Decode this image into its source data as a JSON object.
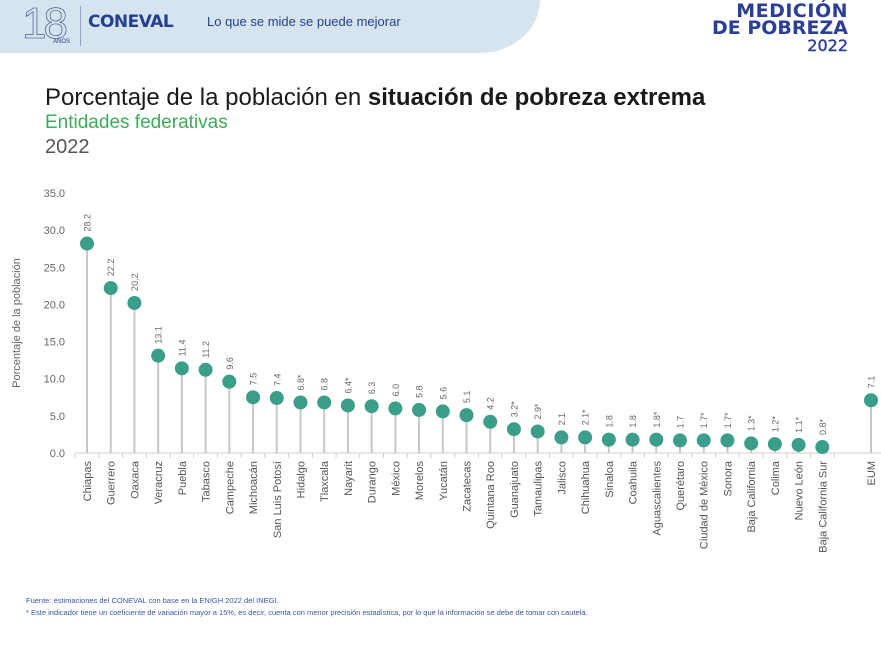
{
  "header": {
    "anniversary_number": "18",
    "anniversary_sub": "AÑOS",
    "brand": "CONEVAL",
    "slogan": "Lo que se mide se puede mejorar",
    "badge_line1": "MEDICIÓN",
    "badge_line2": "DE POBREZA",
    "badge_line3": "2022"
  },
  "title": {
    "prefix": "Porcentaje de la población en ",
    "bold": "situación de pobreza extrema",
    "subtitle": "Entidades federativas",
    "year": "2022"
  },
  "colors": {
    "marker": "#3a9e88",
    "stem": "#c8c8c8",
    "subtitle": "#3cae5a",
    "footnote": "#3a56a8"
  },
  "chart_data": {
    "type": "lollipop",
    "title": "Porcentaje de la población en situación de pobreza extrema",
    "ylabel": "Porcentaje de la población",
    "xlabel": "",
    "ylim": [
      0,
      35
    ],
    "yticks": [
      "0.0",
      "5.0",
      "10.0",
      "15.0",
      "20.0",
      "25.0",
      "30.0",
      "35.0"
    ],
    "grid": false,
    "categories": [
      "Chiapas",
      "Guerrero",
      "Oaxaca",
      "Veracruz",
      "Puebla",
      "Tabasco",
      "Campeche",
      "Michoacán",
      "San Luis Potosí",
      "Hidalgo",
      "Tlaxcala",
      "Nayarit",
      "Durango",
      "México",
      "Morelos",
      "Yucatán",
      "Zacatecas",
      "Quintana Roo",
      "Guanajuato",
      "Tamaulipas",
      "Jalisco",
      "Chihuahua",
      "Sinaloa",
      "Coahuila",
      "Aguascalientes",
      "Querétaro",
      "Ciudad de México",
      "Sonora",
      "Baja California",
      "Colima",
      "Nuevo León",
      "Baja California Sur",
      "EUM"
    ],
    "values": [
      28.2,
      22.2,
      20.2,
      13.1,
      11.4,
      11.2,
      9.6,
      7.5,
      7.4,
      6.8,
      6.8,
      6.4,
      6.3,
      6.0,
      5.8,
      5.6,
      5.1,
      4.2,
      3.2,
      2.9,
      2.1,
      2.1,
      1.8,
      1.8,
      1.8,
      1.7,
      1.7,
      1.7,
      1.3,
      1.2,
      1.1,
      0.8,
      7.1
    ],
    "labels": [
      "28.2",
      "22.2",
      "20.2",
      "13.1",
      "11.4",
      "11.2",
      "9.6",
      "7.5",
      "7.4",
      "6.8*",
      "6.8",
      "6.4*",
      "6.3",
      "6.0",
      "5.8",
      "5.6",
      "5.1",
      "4.2",
      "3.2*",
      "2.9*",
      "2.1",
      "2.1*",
      "1.8",
      "1.8",
      "1.8*",
      "1.7",
      "1.7*",
      "1.7*",
      "1.3*",
      "1.2*",
      "1.1*",
      "0.8*",
      "7.1"
    ]
  },
  "footer": {
    "source": "Fuente: estimaciones del CONEVAL con base en la ENIGH 2022 del INEGI.",
    "note": "* Este indicador tiene un coeficiente de variación mayor a 15%, es decir, cuenta con menor precisión estadística, por lo que la información se debe de tomar con cautela."
  }
}
